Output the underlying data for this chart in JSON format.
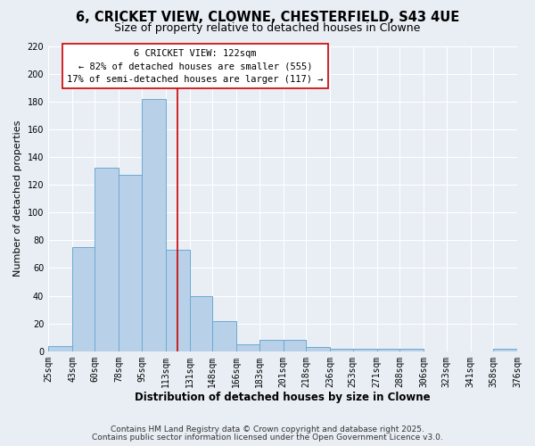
{
  "title": "6, CRICKET VIEW, CLOWNE, CHESTERFIELD, S43 4UE",
  "subtitle": "Size of property relative to detached houses in Clowne",
  "xlabel": "Distribution of detached houses by size in Clowne",
  "ylabel": "Number of detached properties",
  "bin_edges": [
    25,
    43,
    60,
    78,
    95,
    113,
    131,
    148,
    166,
    183,
    201,
    218,
    236,
    253,
    271,
    288,
    306,
    323,
    341,
    358,
    376
  ],
  "bar_heights": [
    4,
    75,
    132,
    127,
    182,
    73,
    40,
    22,
    5,
    8,
    8,
    3,
    2,
    2,
    2,
    2,
    0,
    0,
    0,
    2
  ],
  "bar_color": "#b8d0e8",
  "bar_edge_color": "#6aaad4",
  "background_color": "#e8eef4",
  "grid_color": "#ffffff",
  "vline_x": 122,
  "vline_color": "#cc0000",
  "ylim": [
    0,
    220
  ],
  "yticks": [
    0,
    20,
    40,
    60,
    80,
    100,
    120,
    140,
    160,
    180,
    200,
    220
  ],
  "annotation_title": "6 CRICKET VIEW: 122sqm",
  "annotation_line1": "← 82% of detached houses are smaller (555)",
  "annotation_line2": "17% of semi-detached houses are larger (117) →",
  "annotation_box_facecolor": "#ffffff",
  "annotation_box_edgecolor": "#cc0000",
  "footer1": "Contains HM Land Registry data © Crown copyright and database right 2025.",
  "footer2": "Contains public sector information licensed under the Open Government Licence v3.0.",
  "title_fontsize": 10.5,
  "subtitle_fontsize": 9,
  "xlabel_fontsize": 8.5,
  "ylabel_fontsize": 8,
  "tick_fontsize": 7,
  "annotation_fontsize": 7.5,
  "footer_fontsize": 6.5
}
